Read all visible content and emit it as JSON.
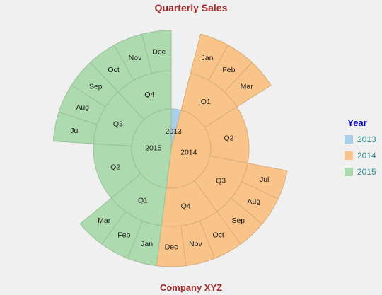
{
  "title": "Quarterly Sales",
  "footer": "Company XYZ",
  "legend": {
    "title": "Year",
    "items": [
      {
        "label": "2013",
        "color": "#a9cfe9"
      },
      {
        "label": "2014",
        "color": "#f8c48a"
      },
      {
        "label": "2015",
        "color": "#aedaaf"
      }
    ]
  },
  "chart_data": {
    "type": "sunburst",
    "title": "Quarterly Sales",
    "subtitle": "Company XYZ",
    "legend_position": "right",
    "levels": [
      "Year",
      "Quarter",
      "Month"
    ],
    "data": [
      {
        "name": "2013",
        "color": "#a9cfe9",
        "value": 1,
        "children": []
      },
      {
        "name": "2014",
        "color": "#f8c48a",
        "children": [
          {
            "name": "Q1",
            "children": [
              {
                "name": "Jan",
                "value": 1
              },
              {
                "name": "Feb",
                "value": 1
              },
              {
                "name": "Mar",
                "value": 1
              }
            ]
          },
          {
            "name": "Q2",
            "value": 3,
            "children": []
          },
          {
            "name": "Q3",
            "children": [
              {
                "name": "Jul",
                "value": 1
              },
              {
                "name": "Aug",
                "value": 1
              },
              {
                "name": "Sep",
                "value": 1
              }
            ]
          },
          {
            "name": "Q4",
            "children": [
              {
                "name": "Oct",
                "value": 1
              },
              {
                "name": "Nov",
                "value": 1
              },
              {
                "name": "Dec",
                "value": 1
              }
            ]
          }
        ]
      },
      {
        "name": "2015",
        "color": "#aedaaf",
        "children": [
          {
            "name": "Q1",
            "children": [
              {
                "name": "Jan",
                "value": 1
              },
              {
                "name": "Feb",
                "value": 1
              },
              {
                "name": "Mar",
                "value": 1
              }
            ]
          },
          {
            "name": "Q2",
            "value": 3,
            "children": []
          },
          {
            "name": "Q3",
            "children": [
              {
                "name": "Jul",
                "value": 1
              },
              {
                "name": "Aug",
                "value": 1
              },
              {
                "name": "Sep",
                "value": 1
              }
            ]
          },
          {
            "name": "Q4",
            "children": [
              {
                "name": "Oct",
                "value": 1
              },
              {
                "name": "Nov",
                "value": 1
              },
              {
                "name": "Dec",
                "value": 1
              }
            ]
          }
        ]
      }
    ]
  }
}
